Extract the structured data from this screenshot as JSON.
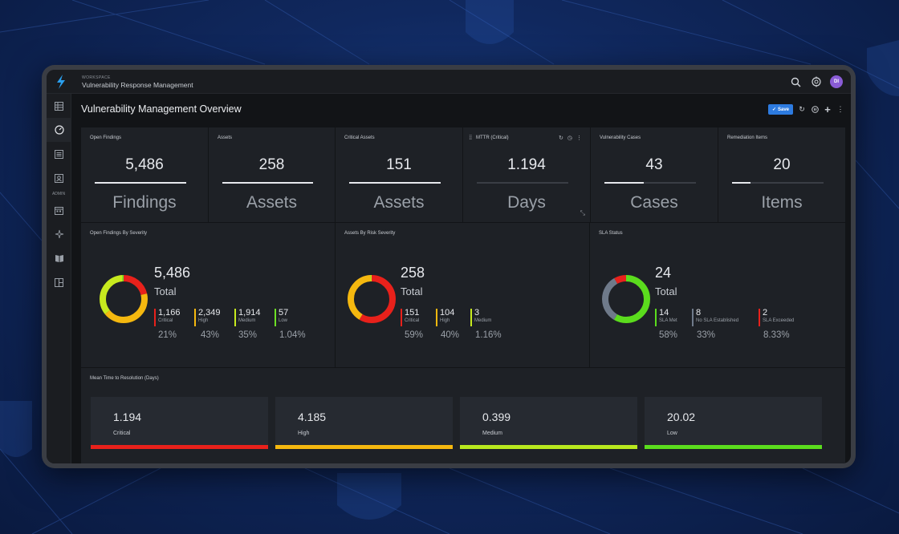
{
  "app": {
    "workspace_label": "WORKSPACE",
    "workspace_title": "Vulnerability Response Management",
    "user_initials": "DI"
  },
  "sidebar": {
    "admin_label": "ADMIN",
    "items": [
      {
        "icon": "grid-icon"
      },
      {
        "icon": "dashboard-gauge-icon",
        "active": true
      },
      {
        "icon": "list-icon"
      },
      {
        "icon": "user-profile-icon"
      },
      {
        "icon": "calendar-icon"
      },
      {
        "icon": "sparkle-icon"
      },
      {
        "icon": "book-icon"
      },
      {
        "icon": "layout-icon"
      }
    ]
  },
  "page": {
    "title": "Vulnerability Management Overview",
    "save_label": "Save"
  },
  "kpis": [
    {
      "title": "Open Findings",
      "value": "5,486",
      "unit": "Findings",
      "fill": 1.0
    },
    {
      "title": "Assets",
      "value": "258",
      "unit": "Assets",
      "fill": 1.0
    },
    {
      "title": "Critical Assets",
      "value": "151",
      "unit": "Assets",
      "fill": 1.0
    },
    {
      "title": "MTTR (Critical)",
      "value": "1.194",
      "unit": "Days",
      "fill": 0.0
    },
    {
      "title": "Vulnerability Cases",
      "value": "43",
      "unit": "Cases",
      "fill": 0.43
    },
    {
      "title": "Remediation Items",
      "value": "20",
      "unit": "Items",
      "fill": 0.2
    }
  ],
  "severity_widget": {
    "title": "Open Findings By Severity",
    "total": "5,486",
    "total_label": "Total",
    "legend": [
      {
        "value": "1,166",
        "label": "Critical",
        "pct": "21%",
        "color": "#e8211b"
      },
      {
        "value": "2,349",
        "label": "High",
        "pct": "43%",
        "color": "#f5b80f"
      },
      {
        "value": "1,914",
        "label": "Medium",
        "pct": "35%",
        "color": "#c7ea1e"
      },
      {
        "value": "57",
        "label": "Low",
        "pct": "1.04%",
        "color": "#6edf25"
      }
    ]
  },
  "risk_widget": {
    "title": "Assets By Risk Severity",
    "total": "258",
    "total_label": "Total",
    "legend": [
      {
        "value": "151",
        "label": "Critical",
        "pct": "59%",
        "color": "#e8211b"
      },
      {
        "value": "104",
        "label": "High",
        "pct": "40%",
        "color": "#f5b80f"
      },
      {
        "value": "3",
        "label": "Medium",
        "pct": "1.16%",
        "color": "#c7ea1e"
      }
    ]
  },
  "sla_widget": {
    "title": "SLA Status",
    "total": "24",
    "total_label": "Total",
    "legend": [
      {
        "value": "14",
        "label": "SLA Met",
        "pct": "58%",
        "color": "#5bdc1d"
      },
      {
        "value": "8",
        "label": "No SLA Established",
        "pct": "33%",
        "color": "#6f7a8a"
      },
      {
        "value": "2",
        "label": "SLA Exceeded",
        "pct": "8.33%",
        "color": "#e8211b"
      }
    ]
  },
  "mttr_widget": {
    "title": "Mean Time to Resolution (Days)",
    "cards": [
      {
        "value": "1.194",
        "label": "Critical",
        "color": "#e8211b"
      },
      {
        "value": "4.185",
        "label": "High",
        "color": "#f5b80f"
      },
      {
        "value": "0.399",
        "label": "Medium",
        "color": "#b8e81e"
      },
      {
        "value": "20.02",
        "label": "Low",
        "color": "#5bdc1d"
      }
    ]
  }
}
